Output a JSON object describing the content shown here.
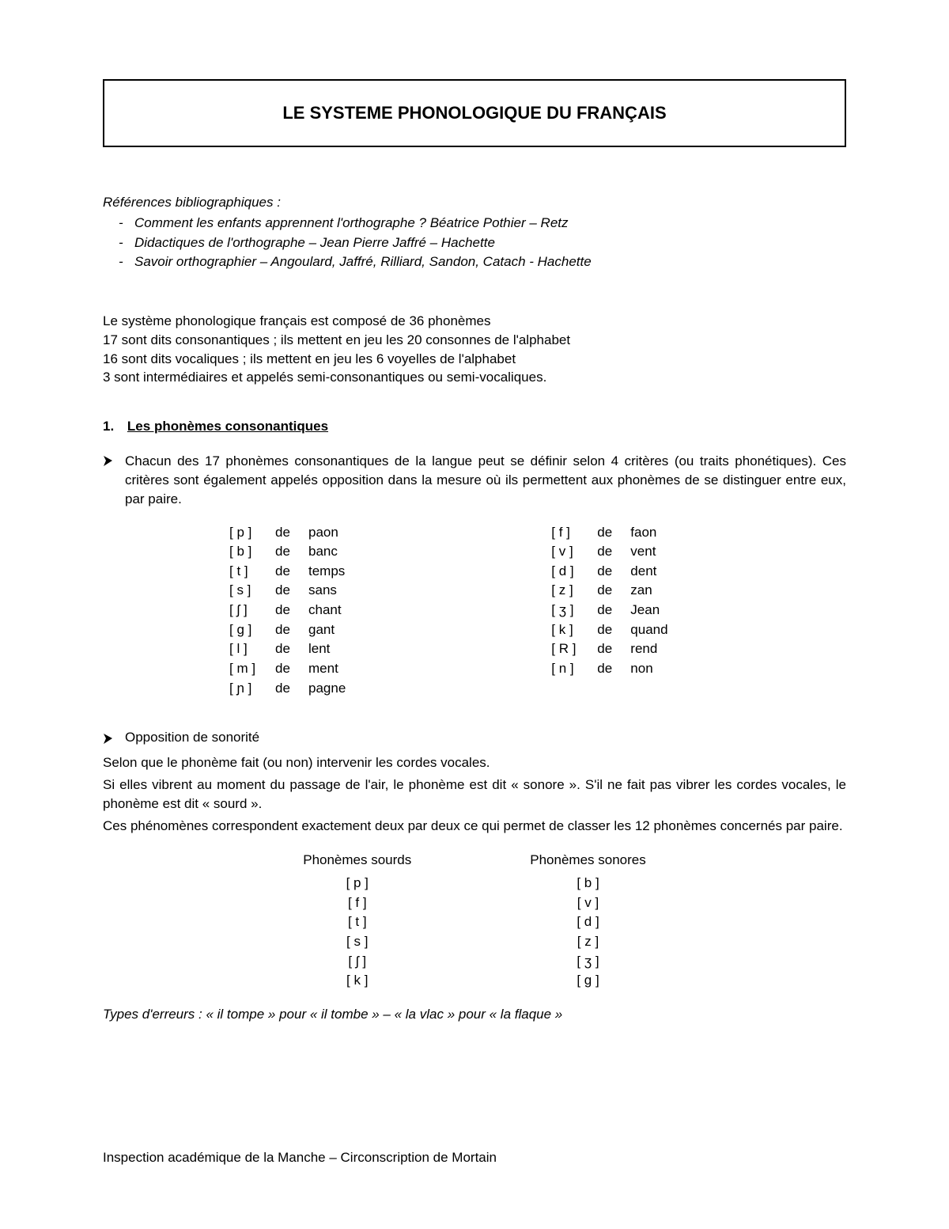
{
  "title": "LE SYSTEME PHONOLOGIQUE DU FRANÇAIS",
  "refs": {
    "heading": "Références bibliographiques :",
    "items": [
      "Comment les enfants apprennent l'orthographe ? Béatrice Pothier – Retz",
      "Didactiques de l'orthographe – Jean Pierre Jaffré – Hachette",
      "Savoir orthographier – Angoulard, Jaffré, Rilliard, Sandon, Catach - Hachette"
    ]
  },
  "intro": [
    "Le système phonologique français est composé de 36 phonèmes",
    "17 sont dits consonantiques ; ils mettent en jeu les 20 consonnes de l'alphabet",
    "16 sont dits vocaliques ; ils mettent en jeu les 6 voyelles de l'alphabet",
    "3 sont intermédiaires et appelés semi-consonantiques ou semi-vocaliques."
  ],
  "section1": {
    "number": "1.",
    "title": "Les phonèmes consonantiques",
    "bullet1": "Chacun des 17 phonèmes consonantiques de la langue peut se définir selon 4 critères (ou traits phonétiques). Ces critères sont également appelés opposition dans la mesure où ils permettent aux phonèmes de se distinguer entre eux, par paire.",
    "phon_left": [
      {
        "sym": "[ p ]",
        "de": "de",
        "word": "paon"
      },
      {
        "sym": "[ b ]",
        "de": "de",
        "word": "banc"
      },
      {
        "sym": "[ t ]",
        "de": "de",
        "word": "temps"
      },
      {
        "sym": "[ s ]",
        "de": "de",
        "word": "sans"
      },
      {
        "sym": "[ ʃ ]",
        "de": "de",
        "word": "chant"
      },
      {
        "sym": "[ g ]",
        "de": "de",
        "word": "gant"
      },
      {
        "sym": "[ l ]",
        "de": "de",
        "word": "lent"
      },
      {
        "sym": "[ m ]",
        "de": "de",
        "word": "ment"
      },
      {
        "sym": "[ ɲ ]",
        "de": "de",
        "word": "pagne"
      }
    ],
    "phon_right": [
      {
        "sym": "[ f ]",
        "de": "de",
        "word": "faon"
      },
      {
        "sym": "[ v ]",
        "de": "de",
        "word": "vent"
      },
      {
        "sym": "[ d ]",
        "de": "de",
        "word": "dent"
      },
      {
        "sym": "[ z ]",
        "de": "de",
        "word": "zan"
      },
      {
        "sym": "[ ʒ ]",
        "de": "de",
        "word": "Jean"
      },
      {
        "sym": "[ k ]",
        "de": "de",
        "word": "quand"
      },
      {
        "sym": "[ R ]",
        "de": "de",
        "word": "rend"
      },
      {
        "sym": "[ n ]",
        "de": "de",
        "word": "non"
      }
    ],
    "bullet2_title": "Opposition de sonorité",
    "bullet2_paras": [
      "Selon que le phonème fait (ou non) intervenir les cordes vocales.",
      "Si elles vibrent au moment du passage de l'air, le phonème est dit « sonore ». S'il ne fait pas vibrer les cordes vocales, le phonème est dit « sourd ».",
      "Ces phénomènes correspondent exactement deux par deux ce qui permet de classer les 12 phonèmes concernés par paire."
    ],
    "pair_table": {
      "left_header": "Phonèmes sourds",
      "right_header": "Phonèmes sonores",
      "left": [
        "[ p ]",
        "[ f ]",
        "[ t ]",
        "[ s ]",
        "[ ʃ ]",
        "[ k ]"
      ],
      "right": [
        "[ b ]",
        "[ v ]",
        "[ d ]",
        "[ z ]",
        "[ ʒ ]",
        "[ g ]"
      ]
    },
    "errors_line": "Types d'erreurs : « il tompe » pour « il tombe » – « la vlac » pour « la flaque »"
  },
  "footer": "Inspection académique de la Manche – Circonscription de Mortain"
}
